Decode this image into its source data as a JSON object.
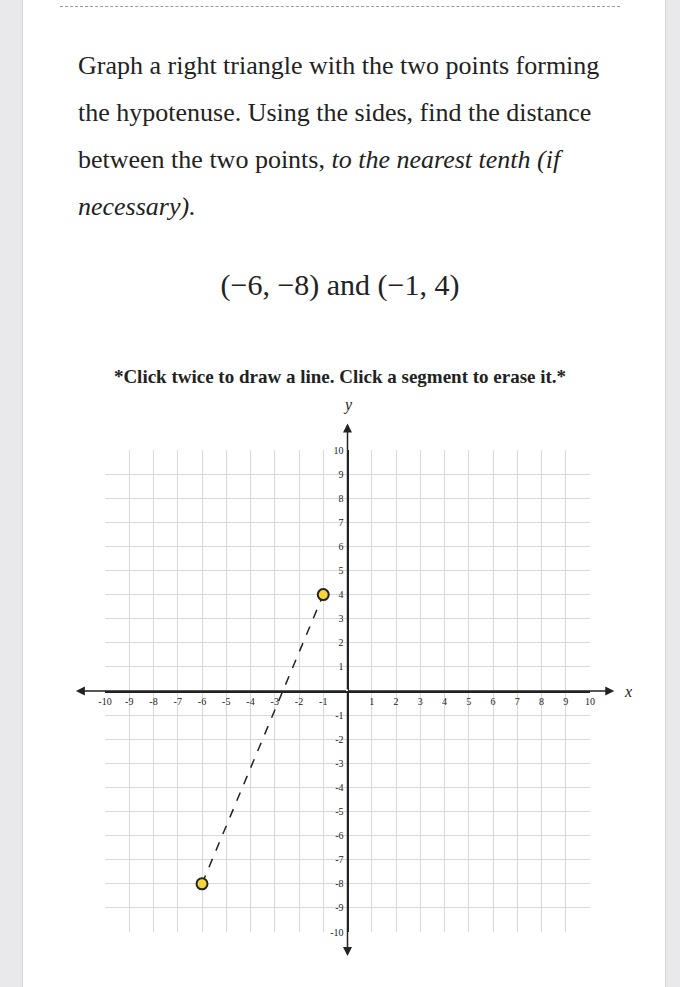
{
  "header": {
    "prompt": "Graph a right triangle with the two points forming the hypotenuse. Using the sides, find the distance between the two points,",
    "prompt_emphasis": "to the nearest tenth (if necessary).",
    "points": "(−6, −8) and (−1, 4)",
    "instruction": "*Click twice to draw a line. Click a segment to erase it.*"
  },
  "chart_data": {
    "type": "scatter",
    "xlabel": "x",
    "ylabel": "y",
    "x": [
      -6,
      -1
    ],
    "values": [
      -8,
      4
    ],
    "color": "#f7d43c",
    "marker": "circle",
    "line_style": "dash",
    "xlim": [
      -10,
      10
    ],
    "ylim": [
      -10,
      10
    ],
    "xticks": [
      -10,
      -9,
      -8,
      -7,
      -6,
      -5,
      -4,
      -3,
      -2,
      -1,
      1,
      2,
      3,
      4,
      5,
      6,
      7,
      8,
      9,
      10
    ],
    "yticks": [
      -10,
      -9,
      -8,
      -7,
      -6,
      -5,
      -4,
      -3,
      -2,
      -1,
      1,
      2,
      3,
      4,
      5,
      6,
      7,
      8,
      9,
      10
    ],
    "grid": true
  }
}
